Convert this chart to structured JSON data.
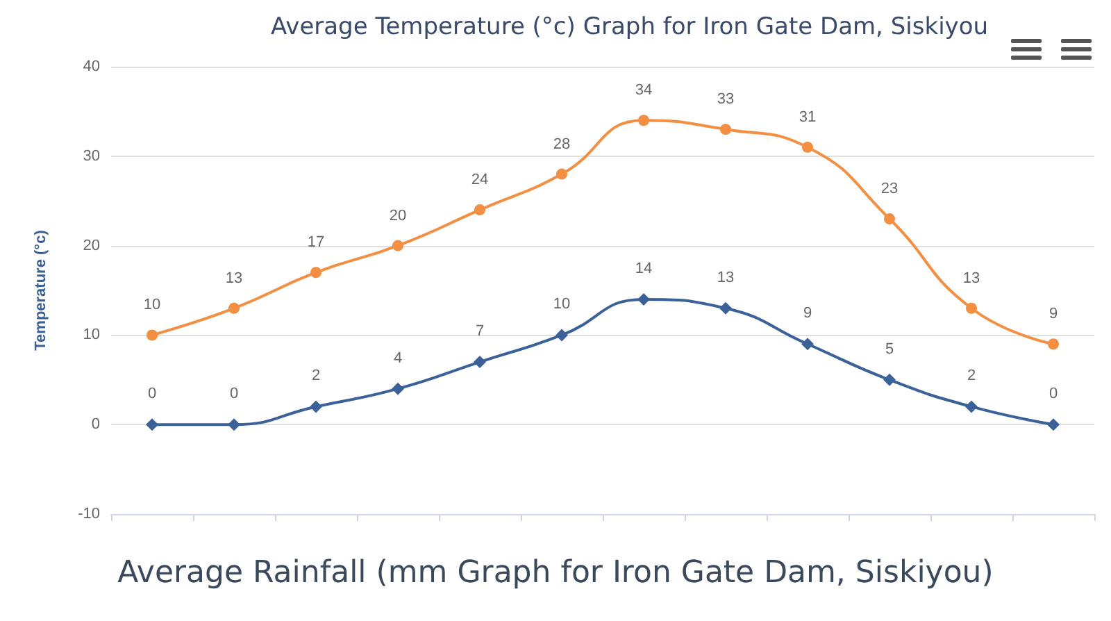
{
  "chart_data": {
    "type": "line",
    "title": "Average Temperature (°c) Graph for Iron Gate Dam, Siskiyou",
    "ylabel": "Temperature (°c)",
    "annotations": [
      "Average Rainfall (mm Graph for Iron Gate Dam, Siskiyou)"
    ],
    "categories": [
      null,
      null,
      null,
      null,
      null,
      null,
      null,
      null,
      null,
      null,
      null,
      null
    ],
    "series": [
      {
        "color": "#f28f43",
        "marker": "circle",
        "values": [
          10,
          13,
          17,
          20,
          24,
          28,
          34,
          33,
          31,
          23,
          13,
          9
        ]
      },
      {
        "color": "#3b6199",
        "marker": "diamond",
        "values": [
          0,
          0,
          2,
          4,
          7,
          10,
          14,
          13,
          9,
          5,
          2,
          0
        ]
      }
    ],
    "ylim": [
      -10,
      40
    ],
    "yticks": [
      -10,
      0,
      10,
      20,
      30,
      40
    ],
    "grid": "y",
    "data_labels": true,
    "tick_labels": "y"
  }
}
